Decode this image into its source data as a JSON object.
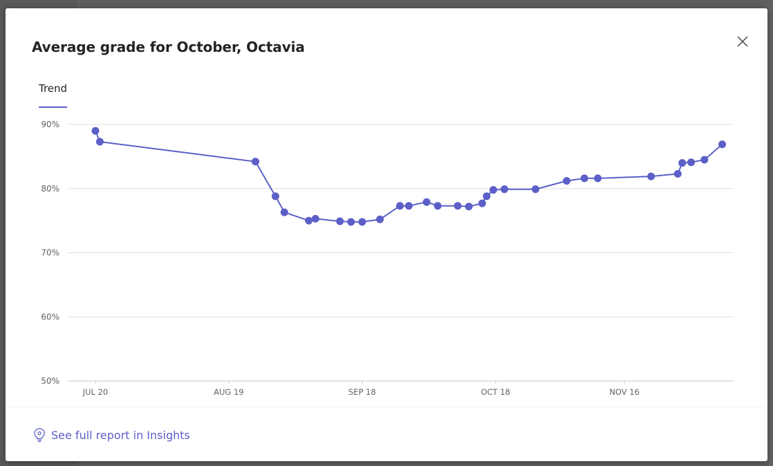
{
  "dialog": {
    "title": "Average grade for October, Octavia",
    "close_icon": "close-icon",
    "accent_color": "#5b5fc7"
  },
  "tabs": [
    {
      "label": "Trend",
      "selected": true
    }
  ],
  "footer": {
    "link_label": "See full report in Insights",
    "link_icon": "lightbulb-icon"
  },
  "chart_data": {
    "type": "line",
    "title": "",
    "xlabel": "",
    "ylabel": "",
    "ylim": [
      50,
      90
    ],
    "yticks": [
      {
        "value": 50,
        "label": "50%"
      },
      {
        "value": 60,
        "label": "60%"
      },
      {
        "value": 70,
        "label": "70%"
      },
      {
        "value": 80,
        "label": "80%"
      },
      {
        "value": 90,
        "label": "90%"
      }
    ],
    "xlim": [
      0,
      142
    ],
    "xticks": [
      {
        "value": 0,
        "label": "JUL 20"
      },
      {
        "value": 30,
        "label": "AUG 19"
      },
      {
        "value": 60,
        "label": "SEP 18"
      },
      {
        "value": 90,
        "label": "OCT 18"
      },
      {
        "value": 119,
        "label": "NOV 16"
      }
    ],
    "x_unit": "days since JUL 20",
    "grid": true,
    "series": [
      {
        "name": "Average grade",
        "color": "#5b5fc7",
        "points": [
          {
            "x": 0,
            "y": 89.0
          },
          {
            "x": 1,
            "y": 87.3
          },
          {
            "x": 36,
            "y": 84.2
          },
          {
            "x": 40.5,
            "y": 78.8
          },
          {
            "x": 42.5,
            "y": 76.3
          },
          {
            "x": 48,
            "y": 75.0
          },
          {
            "x": 49.5,
            "y": 75.3
          },
          {
            "x": 55,
            "y": 74.9
          },
          {
            "x": 57.5,
            "y": 74.8
          },
          {
            "x": 60,
            "y": 74.8
          },
          {
            "x": 64,
            "y": 75.2
          },
          {
            "x": 68.5,
            "y": 77.3
          },
          {
            "x": 70.5,
            "y": 77.3
          },
          {
            "x": 74.5,
            "y": 77.9
          },
          {
            "x": 77,
            "y": 77.3
          },
          {
            "x": 81.5,
            "y": 77.3
          },
          {
            "x": 84,
            "y": 77.2
          },
          {
            "x": 87,
            "y": 77.7
          },
          {
            "x": 88,
            "y": 78.8
          },
          {
            "x": 89.5,
            "y": 79.8
          },
          {
            "x": 92,
            "y": 79.9
          },
          {
            "x": 99,
            "y": 79.9
          },
          {
            "x": 106,
            "y": 81.2
          },
          {
            "x": 110,
            "y": 81.6
          },
          {
            "x": 113,
            "y": 81.6
          },
          {
            "x": 125,
            "y": 81.9
          },
          {
            "x": 131,
            "y": 82.3
          },
          {
            "x": 132,
            "y": 84.0
          },
          {
            "x": 134,
            "y": 84.1
          },
          {
            "x": 137,
            "y": 84.5
          },
          {
            "x": 141,
            "y": 86.9
          }
        ]
      }
    ]
  }
}
